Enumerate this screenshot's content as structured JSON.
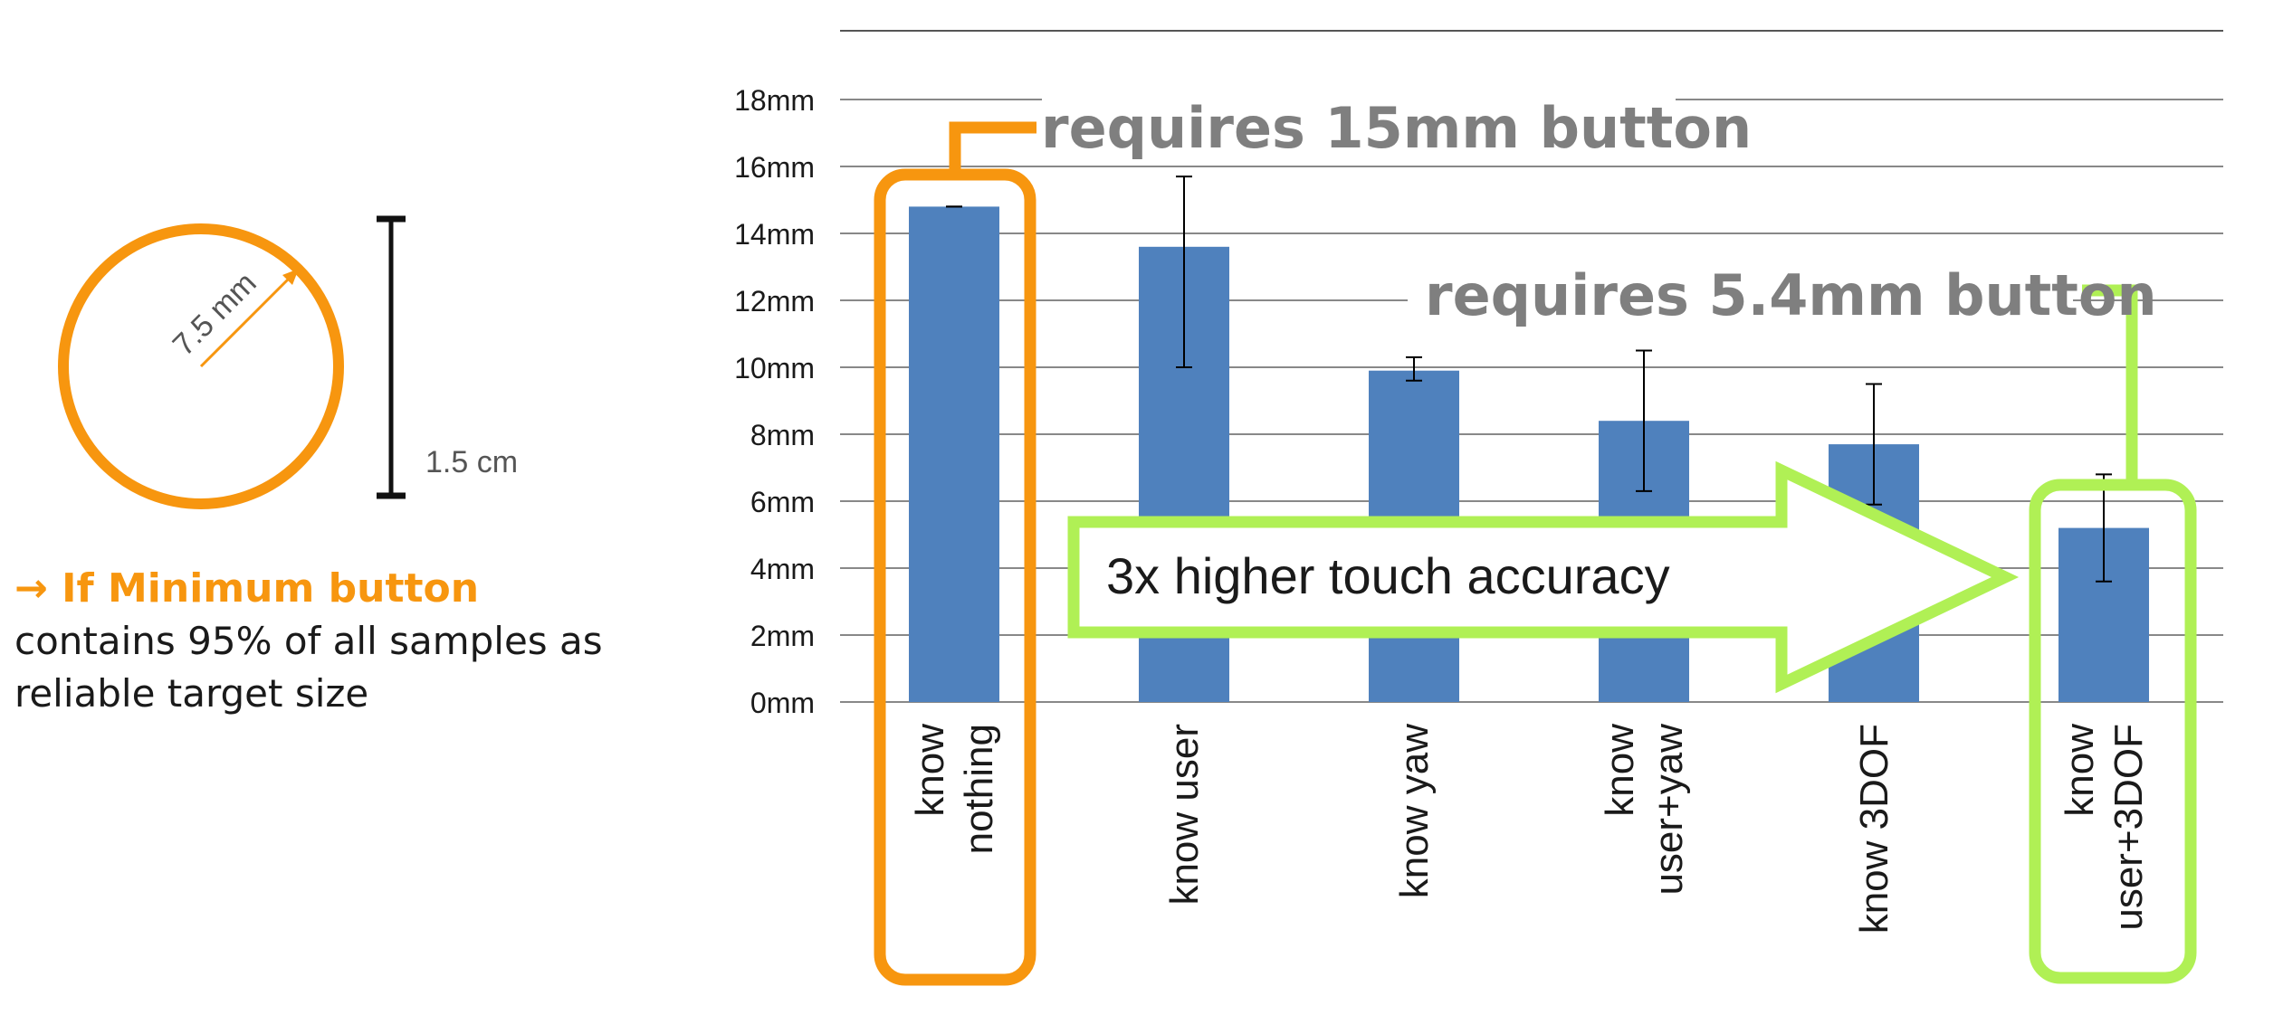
{
  "colors": {
    "bar": "#4F81BD",
    "accent_orange": "#F7960F",
    "accent_green": "#B0F055",
    "callout_text": "#7F7F7F",
    "axis_text": "#1a1a1a",
    "grid": "#888888"
  },
  "diagram": {
    "radius_label": "7.5 mm",
    "diameter_label": "1.5 cm"
  },
  "note": {
    "title": "→ If Minimum button",
    "body": "contains 95% of all samples as reliable target size"
  },
  "callouts": {
    "orange": "requires 15mm button",
    "green": "requires 5.4mm button",
    "arrow": "3x higher touch accuracy"
  },
  "chart_data": {
    "type": "bar",
    "categories": [
      [
        "know",
        "nothing"
      ],
      [
        "know user"
      ],
      [
        "know yaw"
      ],
      [
        "know",
        "user+yaw"
      ],
      [
        "know 3DOF"
      ],
      [
        "know",
        "user+3DOF"
      ]
    ],
    "series": [
      {
        "values": [
          14.8,
          13.6,
          9.9,
          8.4,
          7.7,
          5.2
        ],
        "error_low": [
          14.8,
          10.0,
          9.6,
          6.3,
          5.9,
          3.6
        ],
        "error_high": [
          14.8,
          15.7,
          10.3,
          10.5,
          9.5,
          6.8
        ]
      }
    ],
    "ylim": [
      0,
      18
    ],
    "yticks": [
      "0mm",
      "2mm",
      "4mm",
      "6mm",
      "8mm",
      "10mm",
      "12mm",
      "14mm",
      "16mm",
      "18mm"
    ],
    "grid": true
  }
}
